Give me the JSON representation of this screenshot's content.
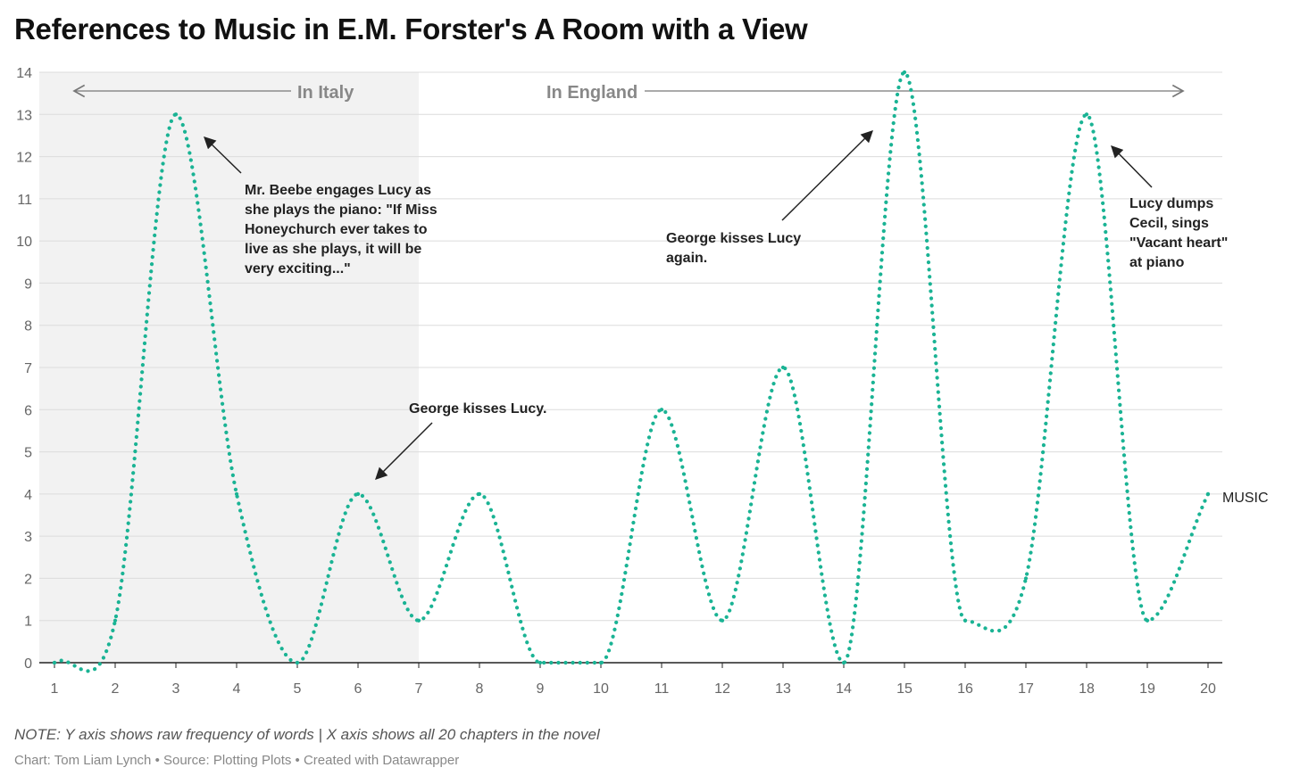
{
  "title": "References to Music in E.M. Forster's A Room with a View",
  "note": "NOTE: Y axis shows raw frequency of words | X axis shows all 20 chapters in the novel",
  "credit": "Chart: Tom Liam Lynch • Source: Plotting Plots • Created with Datawrapper",
  "chart_data": {
    "type": "line",
    "x": [
      1,
      2,
      3,
      4,
      5,
      6,
      7,
      8,
      9,
      10,
      11,
      12,
      13,
      14,
      15,
      16,
      17,
      18,
      19,
      20
    ],
    "series": [
      {
        "name": "MUSIC",
        "values": [
          0,
          1,
          13,
          4,
          0,
          4,
          1,
          4,
          0,
          0,
          6,
          1,
          7,
          0,
          14,
          1,
          2,
          13,
          1,
          4
        ],
        "color": "#1ab394"
      }
    ],
    "xlim": [
      1,
      20
    ],
    "ylim": [
      0,
      14
    ],
    "yticks": [
      0,
      1,
      2,
      3,
      4,
      5,
      6,
      7,
      8,
      9,
      10,
      11,
      12,
      13,
      14
    ],
    "xticks": [
      1,
      2,
      3,
      4,
      5,
      6,
      7,
      8,
      9,
      10,
      11,
      12,
      13,
      14,
      15,
      16,
      17,
      18,
      19,
      20
    ],
    "grid": true,
    "line_style": "dotted",
    "shaded_region": {
      "from": 1,
      "to": 7,
      "color": "#f2f2f2"
    },
    "regions": [
      {
        "label": "In Italy",
        "from": 1,
        "to": 7
      },
      {
        "label": "In England",
        "from": 7,
        "to": 20
      }
    ],
    "annotations": [
      {
        "text": "Mr. Beebe engages Lucy as she plays the piano: \"If Miss Honeychurch ever takes to live as she plays, it will be very exciting...\"",
        "x": 3,
        "y": 13
      },
      {
        "text": "George kisses Lucy.",
        "x": 6,
        "y": 4
      },
      {
        "text": "George kisses Lucy again.",
        "x": 15,
        "y": 14
      },
      {
        "text": "Lucy dumps Cecil, sings \"Vacant heart\" at piano",
        "x": 18,
        "y": 13
      }
    ]
  }
}
